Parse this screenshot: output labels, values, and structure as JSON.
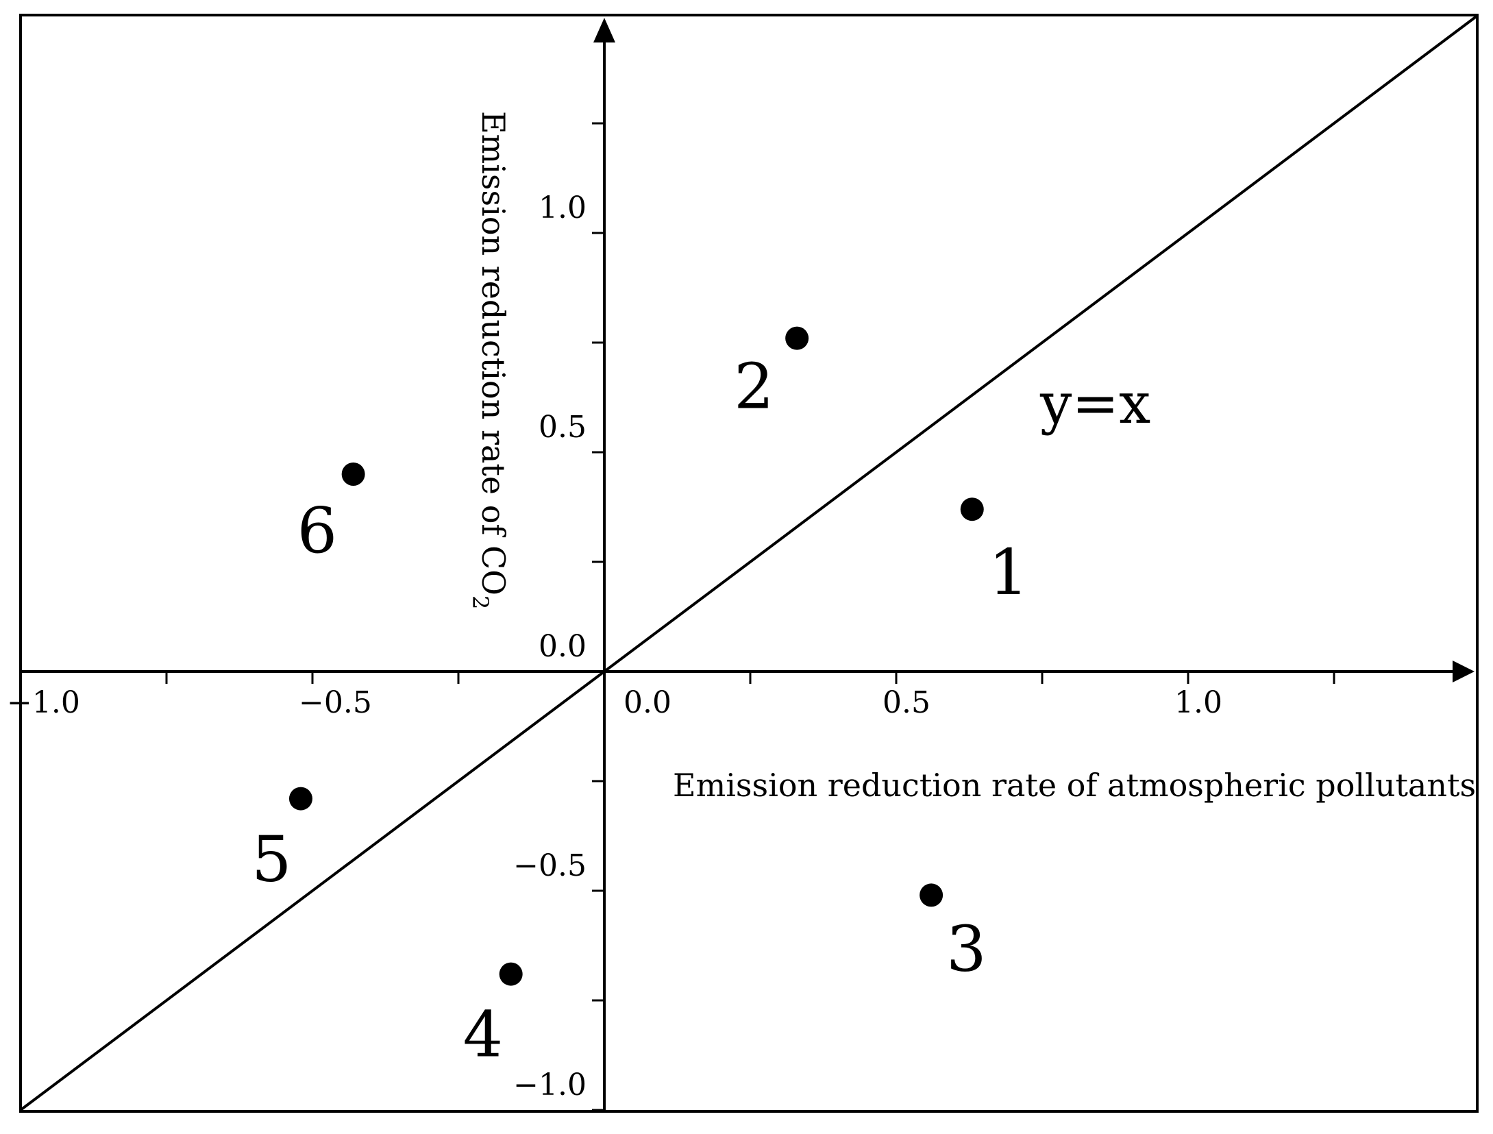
{
  "chart_data": {
    "type": "scatter",
    "xlabel": "Emission reduction rate of atmospheric pollutants",
    "ylabel_main": "Emission reduction rate of CO",
    "ylabel_subscript": "2",
    "xlim": [
      -1.0,
      1.5
    ],
    "ylim": [
      -1.0,
      1.5
    ],
    "x_tick_labels": [
      "−1.0",
      "−0.5",
      "0.0",
      "0.5",
      "1.0"
    ],
    "x_tick_values": [
      -1.0,
      -0.5,
      0.0,
      0.5,
      1.0
    ],
    "y_tick_labels": [
      "−1.0",
      "−0.5",
      "0.0",
      "0.5",
      "1.0"
    ],
    "y_tick_values": [
      -1.0,
      -0.5,
      0.0,
      0.5,
      1.0
    ],
    "x_minor_ticks": [
      -0.75,
      -0.25,
      0.25,
      0.75,
      1.25
    ],
    "y_minor_ticks": [
      -0.75,
      -0.25,
      0.25,
      0.75,
      1.25
    ],
    "reference_line": {
      "label": "y=x",
      "slope": 1,
      "intercept": 0
    },
    "points": [
      {
        "label": "1",
        "x": 0.63,
        "y": 0.37
      },
      {
        "label": "2",
        "x": 0.33,
        "y": 0.76
      },
      {
        "label": "3",
        "x": 0.56,
        "y": -0.51
      },
      {
        "label": "4",
        "x": -0.16,
        "y": -0.69
      },
      {
        "label": "5",
        "x": -0.52,
        "y": -0.29
      },
      {
        "label": "6",
        "x": -0.43,
        "y": 0.45
      }
    ],
    "grid": false,
    "legend": "none"
  }
}
